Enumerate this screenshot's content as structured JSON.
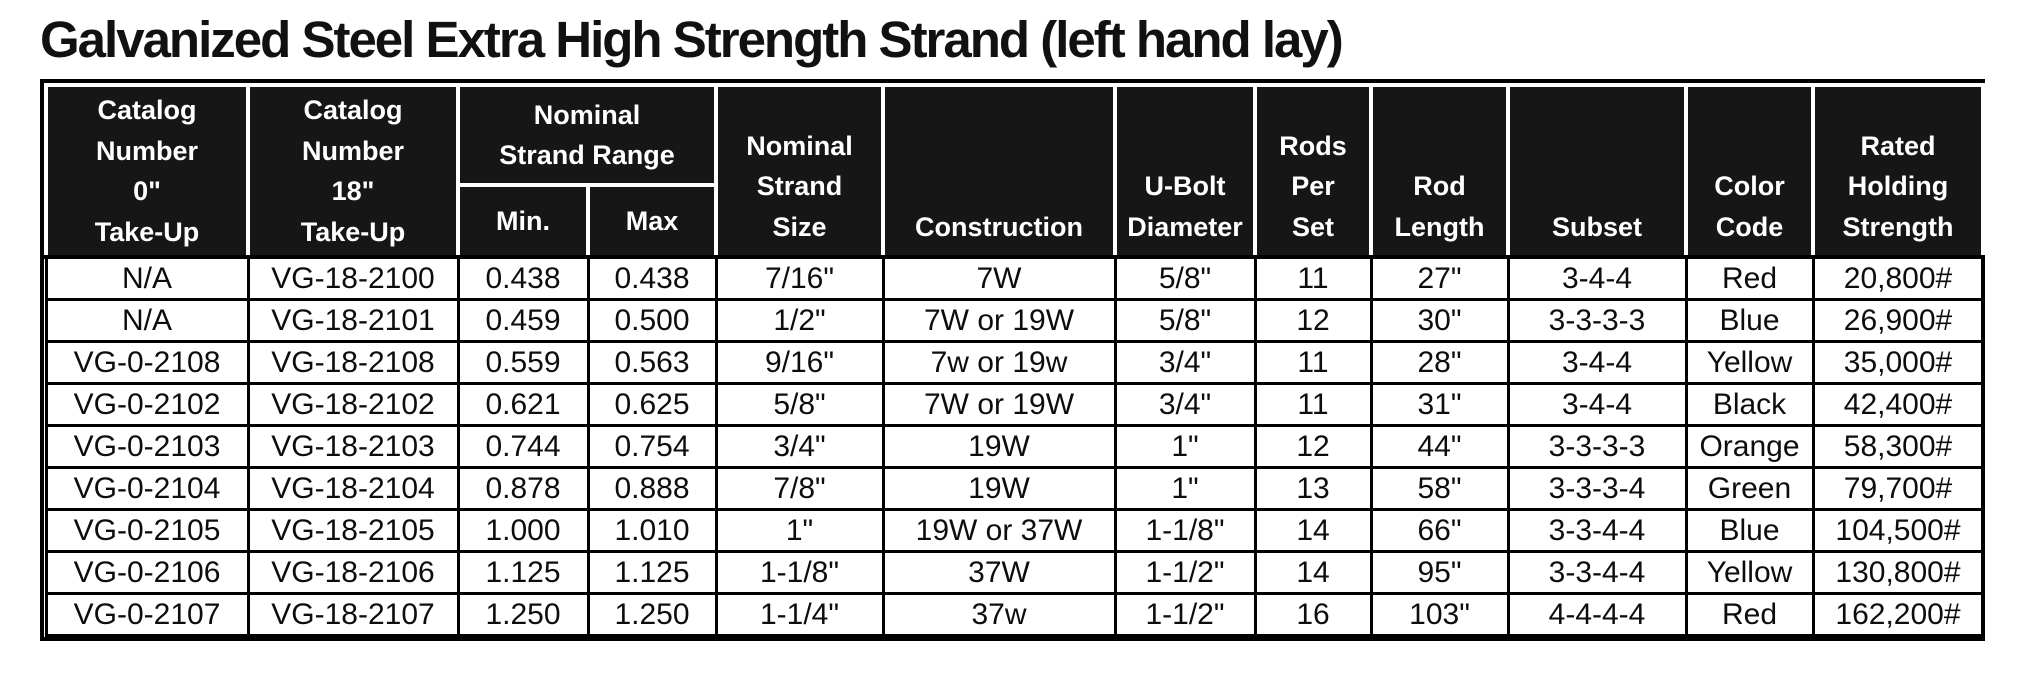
{
  "title": "Galvanized Steel Extra High Strength Strand (left hand lay)",
  "colors": {
    "header_bg": "#161616",
    "header_text": "#ffffff",
    "body_bg": "#ffffff",
    "body_text": "#0d0d0d",
    "grid": "#000000"
  },
  "table": {
    "header": {
      "catalog_0": "Catalog\nNumber\n0\"\nTake-Up",
      "catalog_18": "Catalog\nNumber\n18\"\nTake-Up",
      "strand_range_group": "Nominal\nStrand Range",
      "min": "Min.",
      "max": "Max",
      "strand_size": "Nominal\nStrand\nSize",
      "construction": "Construction",
      "u_bolt": "U-Bolt\nDiameter",
      "rods_per_set": "Rods\nPer\nSet",
      "rod_length": "Rod\nLength",
      "subset": "Subset",
      "color_code": "Color\nCode",
      "rated": "Rated\nHolding\nStrength"
    },
    "column_keys": [
      "catalog_0",
      "catalog_18",
      "min",
      "max",
      "strand_size",
      "construction",
      "u_bolt",
      "rods_per_set",
      "rod_length",
      "subset",
      "color_code",
      "rated"
    ],
    "rows": [
      [
        "N/A",
        "VG-18-2100",
        "0.438",
        "0.438",
        "7/16\"",
        "7W",
        "5/8\"",
        "11",
        "27\"",
        "3-4-4",
        "Red",
        "20,800#"
      ],
      [
        "N/A",
        "VG-18-2101",
        "0.459",
        "0.500",
        "1/2\"",
        "7W or 19W",
        "5/8\"",
        "12",
        "30\"",
        "3-3-3-3",
        "Blue",
        "26,900#"
      ],
      [
        "VG-0-2108",
        "VG-18-2108",
        "0.559",
        "0.563",
        "9/16\"",
        "7w or 19w",
        "3/4\"",
        "11",
        "28\"",
        "3-4-4",
        "Yellow",
        "35,000#"
      ],
      [
        "VG-0-2102",
        "VG-18-2102",
        "0.621",
        "0.625",
        "5/8\"",
        "7W or 19W",
        "3/4\"",
        "11",
        "31\"",
        "3-4-4",
        "Black",
        "42,400#"
      ],
      [
        "VG-0-2103",
        "VG-18-2103",
        "0.744",
        "0.754",
        "3/4\"",
        "19W",
        "1\"",
        "12",
        "44\"",
        "3-3-3-3",
        "Orange",
        "58,300#"
      ],
      [
        "VG-0-2104",
        "VG-18-2104",
        "0.878",
        "0.888",
        "7/8\"",
        "19W",
        "1\"",
        "13",
        "58\"",
        "3-3-3-4",
        "Green",
        "79,700#"
      ],
      [
        "VG-0-2105",
        "VG-18-2105",
        "1.000",
        "1.010",
        "1\"",
        "19W or 37W",
        "1-1/8\"",
        "14",
        "66\"",
        "3-3-4-4",
        "Blue",
        "104,500#"
      ],
      [
        "VG-0-2106",
        "VG-18-2106",
        "1.125",
        "1.125",
        "1-1/8\"",
        "37W",
        "1-1/2\"",
        "14",
        "95\"",
        "3-3-4-4",
        "Yellow",
        "130,800#"
      ],
      [
        "VG-0-2107",
        "VG-18-2107",
        "1.250",
        "1.250",
        "1-1/4\"",
        "37w",
        "1-1/2\"",
        "16",
        "103\"",
        "4-4-4-4",
        "Red",
        "162,200#"
      ]
    ]
  }
}
